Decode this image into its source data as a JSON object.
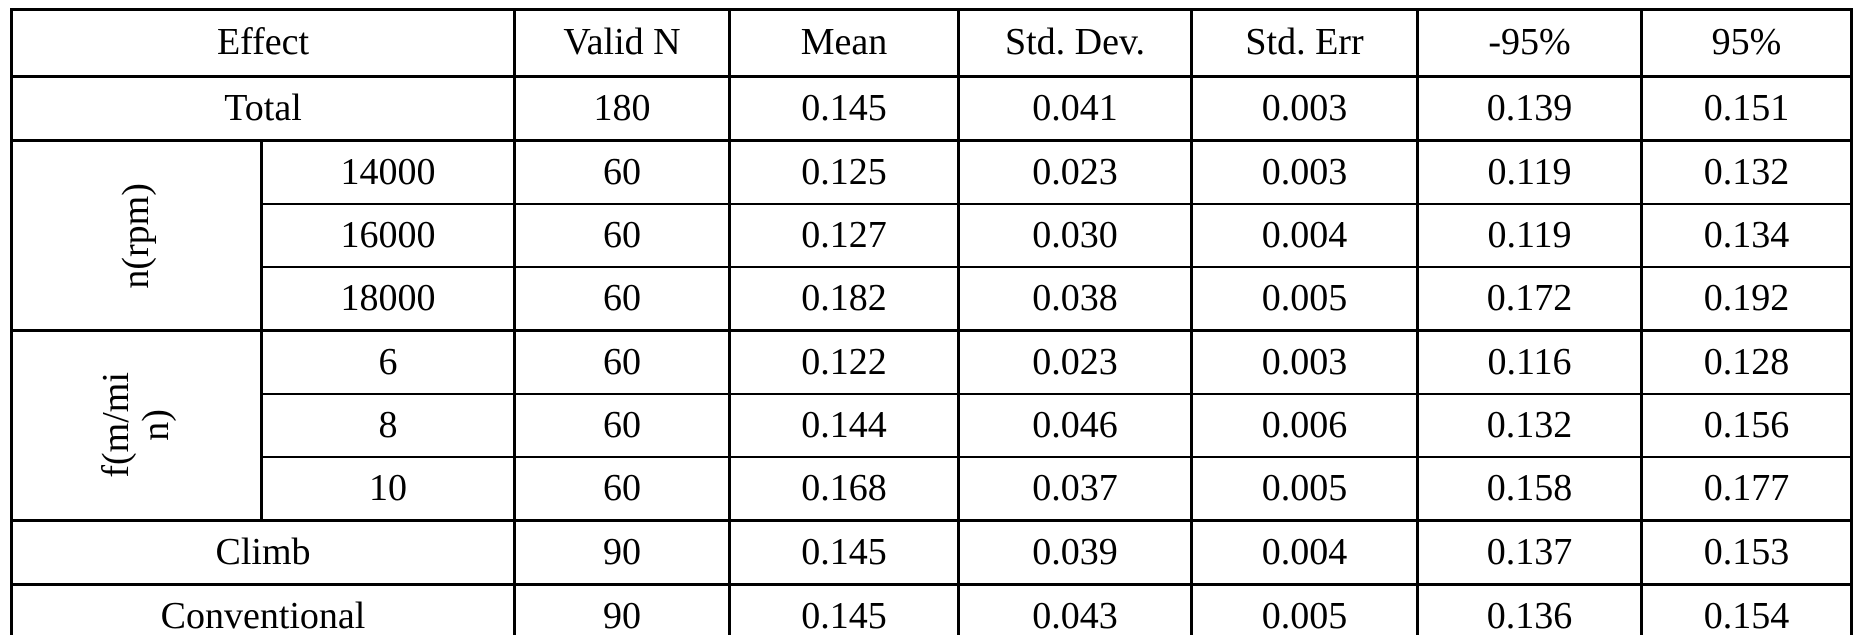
{
  "table": {
    "headers": [
      "Effect",
      "Valid N",
      "Mean",
      "Std. Dev.",
      "Std. Err",
      "-95%",
      "95%"
    ],
    "rows": {
      "total": {
        "label": "Total",
        "values": [
          "180",
          "0.145",
          "0.041",
          "0.003",
          "0.139",
          "0.151"
        ]
      },
      "n_rpm": {
        "group_label": "n(rpm)",
        "items": [
          {
            "level": "14000",
            "values": [
              "60",
              "0.125",
              "0.023",
              "0.003",
              "0.119",
              "0.132"
            ]
          },
          {
            "level": "16000",
            "values": [
              "60",
              "0.127",
              "0.030",
              "0.004",
              "0.119",
              "0.134"
            ]
          },
          {
            "level": "18000",
            "values": [
              "60",
              "0.182",
              "0.038",
              "0.005",
              "0.172",
              "0.192"
            ]
          }
        ]
      },
      "f_m_min": {
        "group_label_lines": [
          "f(m/mi",
          "n)"
        ],
        "items": [
          {
            "level": "6",
            "values": [
              "60",
              "0.122",
              "0.023",
              "0.003",
              "0.116",
              "0.128"
            ]
          },
          {
            "level": "8",
            "values": [
              "60",
              "0.144",
              "0.046",
              "0.006",
              "0.132",
              "0.156"
            ]
          },
          {
            "level": "10",
            "values": [
              "60",
              "0.168",
              "0.037",
              "0.005",
              "0.158",
              "0.177"
            ]
          }
        ]
      },
      "climb": {
        "label": "Climb",
        "values": [
          "90",
          "0.145",
          "0.039",
          "0.004",
          "0.137",
          "0.153"
        ]
      },
      "conventional": {
        "label": "Conventional",
        "values": [
          "90",
          "0.145",
          "0.043",
          "0.005",
          "0.136",
          "0.154"
        ]
      }
    },
    "colors": {
      "border": "#000000",
      "text": "#000000",
      "background": "#ffffff"
    }
  }
}
